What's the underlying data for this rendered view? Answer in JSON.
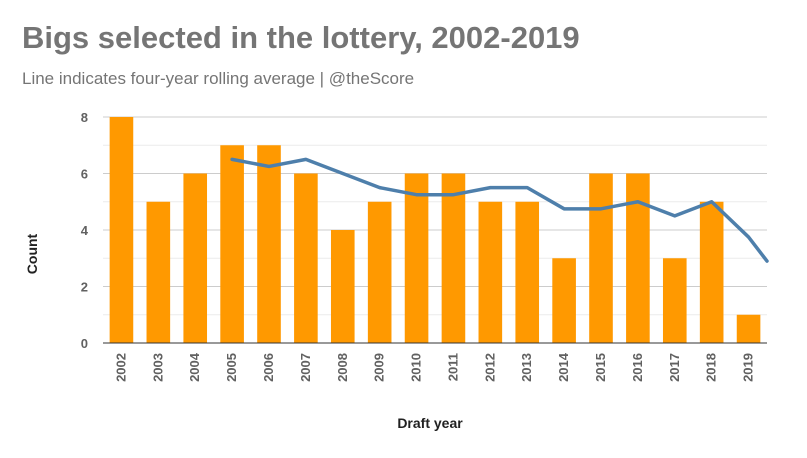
{
  "title": "Bigs selected in the lottery, 2002-2019",
  "subtitle": "Line indicates four-year rolling average | @theScore",
  "chart_data": {
    "type": "bar",
    "title": "Bigs selected in the lottery, 2002-2019",
    "subtitle": "Line indicates four-year rolling average | @theScore",
    "xlabel": "Draft year",
    "ylabel": "Count",
    "ylim": [
      0,
      8
    ],
    "yticks": [
      "0",
      "2",
      "4",
      "6",
      "8"
    ],
    "grid": true,
    "legend": "none",
    "categories": [
      "2002",
      "2003",
      "2004",
      "2005",
      "2006",
      "2007",
      "2008",
      "2009",
      "2010",
      "2011",
      "2012",
      "2013",
      "2014",
      "2015",
      "2016",
      "2017",
      "2018",
      "2019"
    ],
    "series": [
      {
        "type": "bar",
        "color": "#ff9900",
        "values": [
          8,
          5,
          6,
          7,
          7,
          6,
          4,
          5,
          6,
          6,
          5,
          5,
          3,
          6,
          6,
          3,
          5,
          1
        ]
      },
      {
        "type": "line",
        "color": "#4e7fab",
        "values": [
          null,
          null,
          null,
          6.5,
          6.25,
          6.5,
          6,
          5.5,
          5.25,
          5.25,
          5.5,
          5.5,
          4.75,
          4.75,
          5,
          4.5,
          5,
          3.75
        ]
      }
    ],
    "line_extends_to_edge": 2.9
  }
}
